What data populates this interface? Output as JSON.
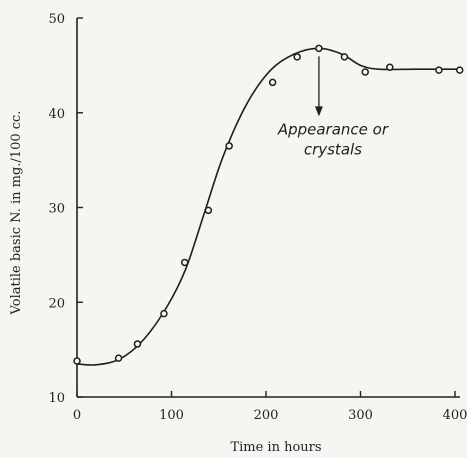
{
  "chart_data": {
    "type": "scatter",
    "xlabel": "Time in hours",
    "ylabel": "Volatile basic N. in mg./100 cc.",
    "xlim": [
      0,
      400
    ],
    "ylim": [
      10,
      50
    ],
    "x_ticks": [
      0,
      100,
      200,
      300,
      400
    ],
    "y_ticks": [
      10,
      20,
      30,
      40,
      50
    ],
    "grid": false,
    "series": [
      {
        "points": [
          {
            "x": 0,
            "y": 13.8
          },
          {
            "x": 44,
            "y": 14.1
          },
          {
            "x": 64,
            "y": 15.6
          },
          {
            "x": 92,
            "y": 18.8
          },
          {
            "x": 114,
            "y": 24.2
          },
          {
            "x": 139,
            "y": 29.7
          },
          {
            "x": 161,
            "y": 36.5
          },
          {
            "x": 207,
            "y": 43.2
          },
          {
            "x": 233,
            "y": 45.9
          },
          {
            "x": 256,
            "y": 46.8
          },
          {
            "x": 283,
            "y": 45.9
          },
          {
            "x": 305,
            "y": 44.3
          },
          {
            "x": 331,
            "y": 44.8
          },
          {
            "x": 383,
            "y": 44.5
          },
          {
            "x": 405,
            "y": 44.5
          }
        ],
        "curve": [
          {
            "x": 0,
            "y": 13.5
          },
          {
            "x": 20,
            "y": 13.4
          },
          {
            "x": 45,
            "y": 14.0
          },
          {
            "x": 70,
            "y": 16.0
          },
          {
            "x": 95,
            "y": 19.5
          },
          {
            "x": 115,
            "y": 23.5
          },
          {
            "x": 135,
            "y": 29.5
          },
          {
            "x": 155,
            "y": 35.5
          },
          {
            "x": 180,
            "y": 41.0
          },
          {
            "x": 205,
            "y": 44.5
          },
          {
            "x": 230,
            "y": 46.2
          },
          {
            "x": 256,
            "y": 46.8
          },
          {
            "x": 280,
            "y": 46.2
          },
          {
            "x": 300,
            "y": 45.0
          },
          {
            "x": 320,
            "y": 44.6
          },
          {
            "x": 360,
            "y": 44.6
          },
          {
            "x": 405,
            "y": 44.6
          }
        ]
      }
    ],
    "annotation": {
      "lines": [
        "Appearance or",
        "crystals"
      ],
      "x": 256,
      "y": 46.8
    }
  }
}
